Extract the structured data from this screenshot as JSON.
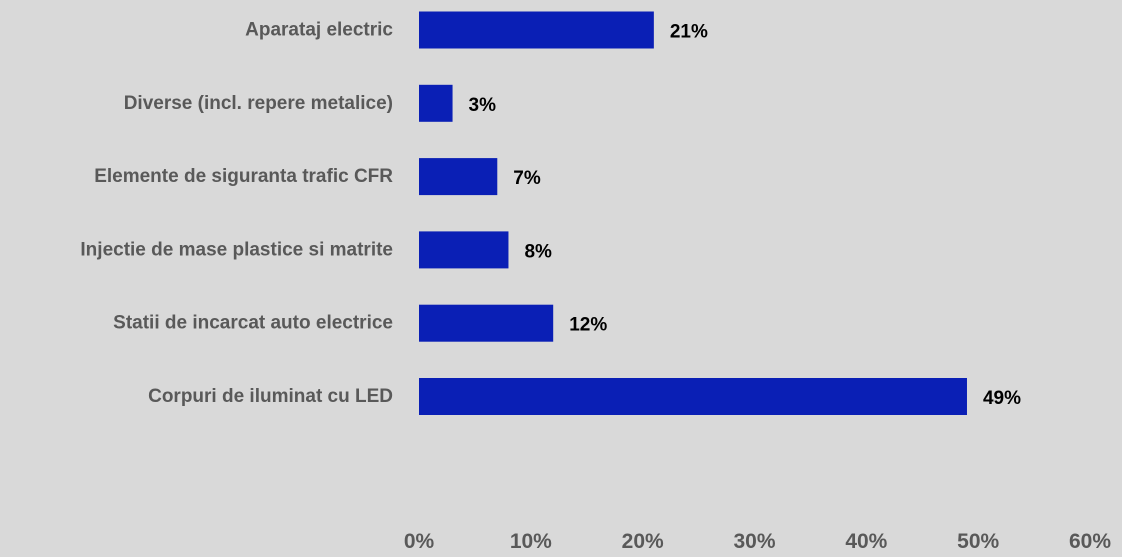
{
  "chart_data": {
    "type": "bar",
    "orientation": "horizontal",
    "title": "",
    "xlabel": "",
    "ylabel": "",
    "categories": [
      "Aparataj electric",
      "Diverse (incl. repere metalice)",
      "Elemente de siguranta trafic CFR",
      "Injectie de mase plastice si matrite",
      "Statii de incarcat auto electrice",
      "Corpuri de iluminat cu LED"
    ],
    "values": [
      21,
      3,
      7,
      8,
      12,
      49
    ],
    "value_labels": [
      "21%",
      "3%",
      "7%",
      "8%",
      "12%",
      "49%"
    ],
    "xlim": [
      0,
      60
    ],
    "x_ticks": [
      0,
      10,
      20,
      30,
      40,
      50,
      60
    ],
    "x_tick_labels": [
      "0%",
      "10%",
      "20%",
      "30%",
      "40%",
      "50%",
      "60%"
    ],
    "grid": false,
    "legend": "none",
    "bar_color": "#0a1fb5",
    "background_color": "#d9d9d9"
  }
}
